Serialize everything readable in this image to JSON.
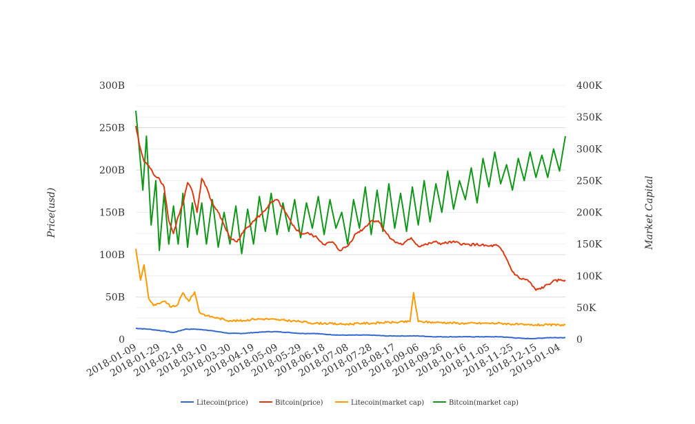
{
  "chart_data": {
    "type": "line",
    "ylabel_left": "Price(usd)",
    "ylabel_right": "Market Capital",
    "left_axis": {
      "ticks": [
        "0",
        "50B",
        "100B",
        "150B",
        "200B",
        "250B",
        "300B"
      ],
      "range": [
        0,
        300
      ]
    },
    "right_axis": {
      "ticks": [
        "0",
        "50K",
        "100K",
        "150K",
        "200K",
        "250K",
        "300K",
        "350K",
        "400K"
      ],
      "range": [
        0,
        400
      ]
    },
    "x_tick_labels": [
      "2018-01-09",
      "2018-01-29",
      "2018-02-18",
      "2018-03-10",
      "2018-03-30",
      "2018-04-19",
      "2018-05-09",
      "2018-05-29",
      "2018-06-18",
      "2018-07-08",
      "2018-07-28",
      "2018-08-17",
      "2018-09-06",
      "2018-09-26",
      "2018-10-16",
      "2018-11-05",
      "2018-11-25",
      "2018-12-15",
      "2019-01-04"
    ],
    "x_range": [
      "2018-01-09",
      "2019-01-09"
    ],
    "legend_position": "bottom",
    "grid": true,
    "series": [
      {
        "name": "Litecoin(price)",
        "axis": "left",
        "color": "#3366cc",
        "x": [
          "2018-01-09",
          "2018-01-20",
          "2018-02-01",
          "2018-02-10",
          "2018-02-20",
          "2018-03-01",
          "2018-03-10",
          "2018-03-20",
          "2018-03-30",
          "2018-04-10",
          "2018-04-19",
          "2018-05-01",
          "2018-05-09",
          "2018-05-20",
          "2018-05-29",
          "2018-06-10",
          "2018-06-18",
          "2018-07-01",
          "2018-07-08",
          "2018-07-20",
          "2018-07-28",
          "2018-08-10",
          "2018-08-17",
          "2018-09-01",
          "2018-09-06",
          "2018-09-20",
          "2018-09-26",
          "2018-10-10",
          "2018-10-16",
          "2018-10-30",
          "2018-11-05",
          "2018-11-15",
          "2018-11-25",
          "2018-12-05",
          "2018-12-15",
          "2018-12-25",
          "2019-01-04",
          "2019-01-09"
        ],
        "values": [
          13,
          12,
          10,
          8,
          12,
          12,
          11,
          9,
          7,
          7,
          8,
          9,
          9,
          8,
          7,
          7,
          6,
          5,
          5,
          5,
          5,
          4,
          4,
          4,
          4,
          3,
          3,
          3,
          3,
          3,
          3,
          3,
          2,
          1,
          1,
          2,
          2,
          2
        ]
      },
      {
        "name": "Bitcoin(price)",
        "axis": "left",
        "color": "#dc3912",
        "x": [
          "2018-01-09",
          "2018-01-12",
          "2018-01-16",
          "2018-01-20",
          "2018-01-24",
          "2018-01-29",
          "2018-02-02",
          "2018-02-06",
          "2018-02-10",
          "2018-02-14",
          "2018-02-18",
          "2018-02-22",
          "2018-02-26",
          "2018-03-02",
          "2018-03-06",
          "2018-03-10",
          "2018-03-15",
          "2018-03-20",
          "2018-03-25",
          "2018-03-30",
          "2018-04-05",
          "2018-04-12",
          "2018-04-19",
          "2018-04-26",
          "2018-05-03",
          "2018-05-09",
          "2018-05-16",
          "2018-05-22",
          "2018-05-29",
          "2018-06-05",
          "2018-06-12",
          "2018-06-18",
          "2018-06-25",
          "2018-07-01",
          "2018-07-08",
          "2018-07-15",
          "2018-07-21",
          "2018-07-28",
          "2018-08-03",
          "2018-08-10",
          "2018-08-17",
          "2018-08-24",
          "2018-08-31",
          "2018-09-06",
          "2018-09-13",
          "2018-09-20",
          "2018-09-26",
          "2018-10-05",
          "2018-10-16",
          "2018-10-25",
          "2018-11-05",
          "2018-11-12",
          "2018-11-16",
          "2018-11-20",
          "2018-11-25",
          "2018-12-01",
          "2018-12-08",
          "2018-12-15",
          "2018-12-22",
          "2018-12-29",
          "2019-01-04",
          "2019-01-09"
        ],
        "values": [
          252,
          230,
          210,
          205,
          195,
          190,
          180,
          140,
          125,
          145,
          160,
          185,
          175,
          150,
          190,
          180,
          160,
          150,
          135,
          120,
          115,
          130,
          140,
          148,
          160,
          165,
          150,
          135,
          125,
          125,
          120,
          112,
          115,
          105,
          110,
          125,
          130,
          140,
          140,
          125,
          115,
          112,
          120,
          110,
          112,
          115,
          113,
          115,
          112,
          112,
          110,
          111,
          105,
          95,
          80,
          72,
          70,
          58,
          62,
          68,
          70,
          70
        ]
      },
      {
        "name": "Litecoin(market cap)",
        "axis": "left",
        "color": "#ff9900",
        "x": [
          "2018-01-09",
          "2018-01-13",
          "2018-01-16",
          "2018-01-20",
          "2018-01-24",
          "2018-01-29",
          "2018-02-03",
          "2018-02-08",
          "2018-02-13",
          "2018-02-18",
          "2018-02-23",
          "2018-02-28",
          "2018-03-04",
          "2018-03-10",
          "2018-03-20",
          "2018-03-30",
          "2018-04-10",
          "2018-04-19",
          "2018-05-01",
          "2018-05-09",
          "2018-05-20",
          "2018-05-29",
          "2018-06-10",
          "2018-06-18",
          "2018-07-01",
          "2018-07-08",
          "2018-07-20",
          "2018-07-28",
          "2018-08-10",
          "2018-08-17",
          "2018-08-30",
          "2018-09-02",
          "2018-09-06",
          "2018-09-20",
          "2018-09-26",
          "2018-10-10",
          "2018-10-16",
          "2018-10-30",
          "2018-11-05",
          "2018-11-15",
          "2018-11-25",
          "2018-12-05",
          "2018-12-15",
          "2018-12-25",
          "2019-01-04",
          "2019-01-09"
        ],
        "values": [
          107,
          70,
          88,
          48,
          40,
          42,
          45,
          38,
          40,
          55,
          45,
          56,
          32,
          28,
          25,
          22,
          22,
          24,
          24,
          23,
          22,
          21,
          19,
          19,
          18,
          18,
          19,
          19,
          20,
          20,
          21,
          55,
          21,
          20,
          20,
          19,
          19,
          19,
          19,
          19,
          18,
          17,
          17,
          17,
          17,
          17
        ]
      },
      {
        "name": "Bitcoin(market cap)",
        "axis": "right",
        "color": "#109618",
        "x": [
          "2018-01-09",
          "2018-01-11",
          "2018-01-15",
          "2018-01-18",
          "2018-01-22",
          "2018-01-26",
          "2018-01-29",
          "2018-02-02",
          "2018-02-06",
          "2018-02-10",
          "2018-02-14",
          "2018-02-18",
          "2018-02-22",
          "2018-02-26",
          "2018-03-02",
          "2018-03-06",
          "2018-03-10",
          "2018-03-15",
          "2018-03-20",
          "2018-03-25",
          "2018-03-30",
          "2018-04-04",
          "2018-04-09",
          "2018-04-14",
          "2018-04-19",
          "2018-04-24",
          "2018-04-29",
          "2018-05-04",
          "2018-05-09",
          "2018-05-14",
          "2018-05-19",
          "2018-05-24",
          "2018-05-29",
          "2018-06-03",
          "2018-06-08",
          "2018-06-13",
          "2018-06-18",
          "2018-06-23",
          "2018-06-28",
          "2018-07-03",
          "2018-07-08",
          "2018-07-13",
          "2018-07-18",
          "2018-07-23",
          "2018-07-28",
          "2018-08-02",
          "2018-08-07",
          "2018-08-12",
          "2018-08-17",
          "2018-08-22",
          "2018-08-27",
          "2018-09-01",
          "2018-09-06",
          "2018-09-11",
          "2018-09-16",
          "2018-09-21",
          "2018-09-26",
          "2018-10-01",
          "2018-10-06",
          "2018-10-11",
          "2018-10-16",
          "2018-10-21",
          "2018-10-26",
          "2018-10-31",
          "2018-11-05",
          "2018-11-10",
          "2018-11-15",
          "2018-11-20",
          "2018-11-25",
          "2018-11-30",
          "2018-12-05",
          "2018-12-10",
          "2018-12-15",
          "2018-12-20",
          "2018-12-25",
          "2018-12-30",
          "2019-01-04",
          "2019-01-09"
        ],
        "values": [
          360,
          320,
          235,
          320,
          180,
          250,
          140,
          230,
          150,
          210,
          150,
          230,
          145,
          215,
          165,
          215,
          150,
          220,
          145,
          200,
          150,
          210,
          135,
          205,
          150,
          225,
          170,
          230,
          165,
          215,
          170,
          220,
          160,
          215,
          175,
          225,
          165,
          220,
          175,
          200,
          150,
          220,
          175,
          240,
          165,
          235,
          170,
          245,
          175,
          230,
          170,
          240,
          180,
          250,
          185,
          245,
          200,
          265,
          205,
          250,
          220,
          270,
          215,
          285,
          240,
          295,
          245,
          275,
          235,
          285,
          250,
          295,
          255,
          290,
          255,
          300,
          265,
          320
        ]
      }
    ]
  }
}
